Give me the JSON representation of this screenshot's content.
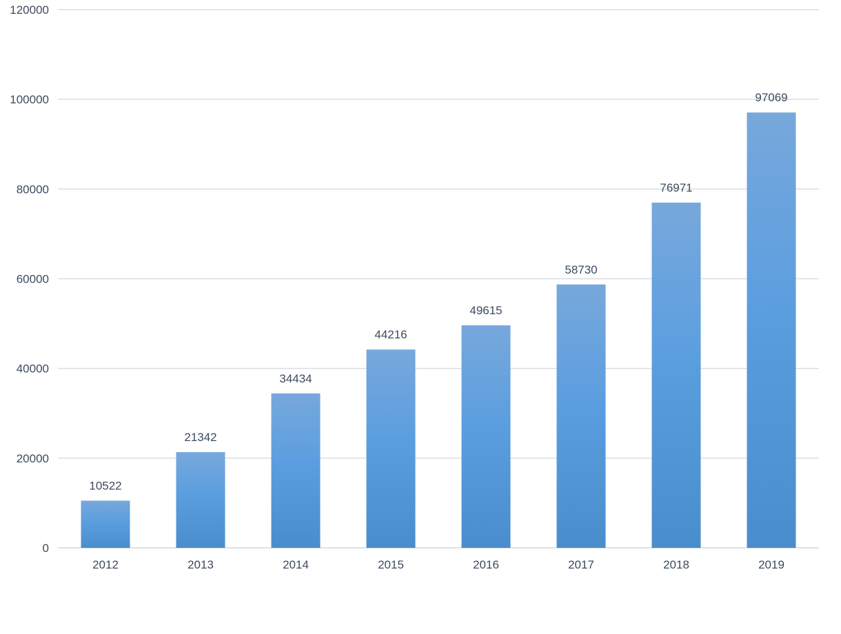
{
  "chart_data": {
    "type": "bar",
    "categories": [
      "2012",
      "2013",
      "2014",
      "2015",
      "2016",
      "2017",
      "2018",
      "2019"
    ],
    "series": [
      {
        "values": [
          10522,
          21342,
          34434,
          44216,
          49615,
          58730,
          76971,
          97069
        ]
      }
    ],
    "ylim": [
      0,
      120000
    ],
    "yticks": [
      0,
      20000,
      40000,
      60000,
      80000,
      100000,
      120000
    ],
    "grid": true,
    "data_labels": true,
    "colors": {
      "bar_top": "#77a8dc",
      "bar_mid": "#5b9edf",
      "bar_bottom": "#4a8dcc",
      "grid": "#d9dde3",
      "text": "#3c4a5e"
    }
  }
}
